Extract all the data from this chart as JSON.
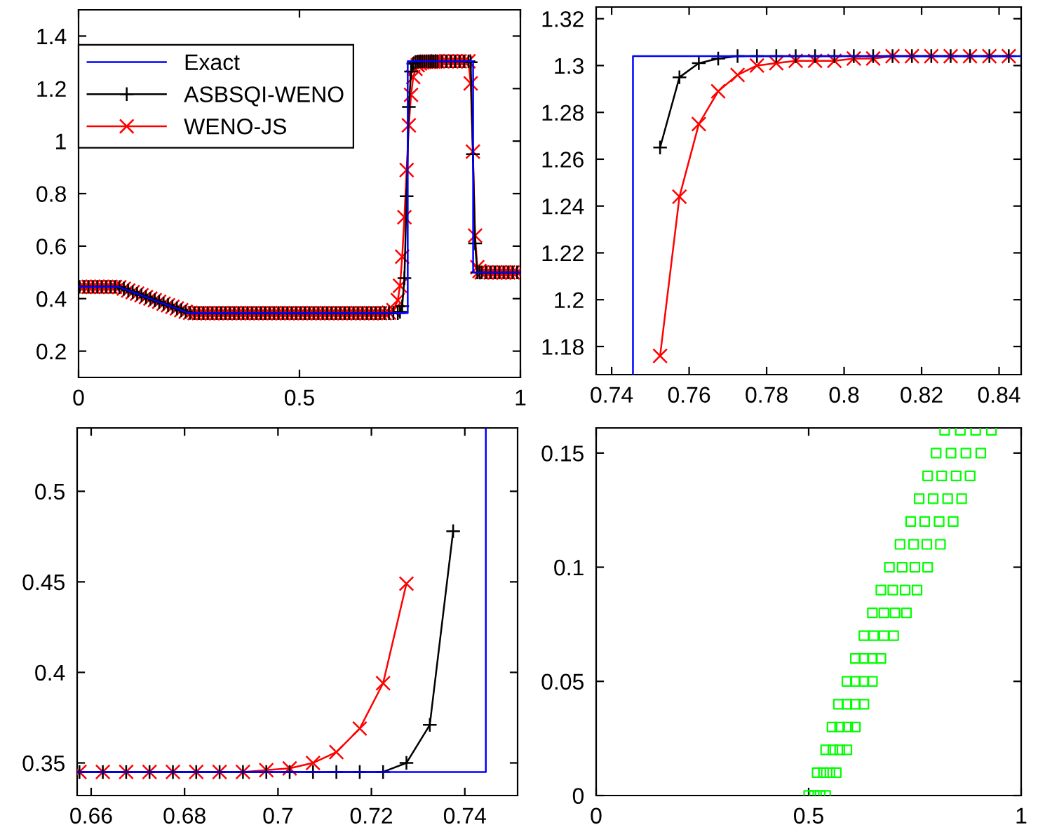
{
  "chart_data": [
    {
      "type": "line",
      "xlim": [
        0,
        1
      ],
      "ylim": [
        0.1,
        1.5
      ],
      "xticks": [
        0,
        0.5,
        1
      ],
      "yticks": [
        0.2,
        0.4,
        0.6,
        0.8,
        1,
        1.2,
        1.4
      ],
      "grid": false,
      "legend": "top left",
      "series": [
        {
          "name": "Exact",
          "color": "#0000ff",
          "marker": "none",
          "x": [
            0,
            0.09,
            0.25,
            0.745,
            0.745,
            0.893,
            0.893,
            1
          ],
          "values": [
            0.445,
            0.445,
            0.345,
            0.345,
            1.304,
            1.304,
            0.5,
            0.5
          ]
        },
        {
          "name": "ASBSQI-WENO",
          "color": "#000000",
          "marker": "plus",
          "x": [
            0.0025,
            0.0125,
            0.0225,
            0.0325,
            0.0425,
            0.0525,
            0.0625,
            0.0725,
            0.0825,
            0.0925,
            0.1025,
            0.1125,
            0.1225,
            0.1325,
            0.1425,
            0.1525,
            0.1625,
            0.1725,
            0.1825,
            0.1925,
            0.2025,
            0.2125,
            0.2225,
            0.2325,
            0.2425,
            0.2525,
            0.2625,
            0.2725,
            0.2825,
            0.2925,
            0.3025,
            0.3125,
            0.3225,
            0.3325,
            0.3425,
            0.3525,
            0.3625,
            0.3725,
            0.3825,
            0.3925,
            0.4025,
            0.4125,
            0.4225,
            0.4325,
            0.4425,
            0.4525,
            0.4625,
            0.4725,
            0.4825,
            0.4925,
            0.5025,
            0.5125,
            0.5225,
            0.5325,
            0.5425,
            0.5525,
            0.5625,
            0.5725,
            0.5825,
            0.5925,
            0.6025,
            0.6125,
            0.6225,
            0.6325,
            0.6425,
            0.6525,
            0.6625,
            0.6725,
            0.6825,
            0.6925,
            0.7025,
            0.7125,
            0.7225,
            0.7275,
            0.7325,
            0.7375,
            0.7425,
            0.7475,
            0.7525,
            0.7575,
            0.7625,
            0.7675,
            0.7725,
            0.7775,
            0.7825,
            0.7875,
            0.7925,
            0.7975,
            0.8025,
            0.8075,
            0.8125,
            0.8225,
            0.8325,
            0.8425,
            0.8525,
            0.8625,
            0.8725,
            0.8825,
            0.8875,
            0.8925,
            0.8975,
            0.9025,
            0.9075,
            0.9125,
            0.9225,
            0.9325,
            0.9425,
            0.9525,
            0.9625,
            0.9725,
            0.9825,
            0.9925
          ],
          "values": [
            0.445,
            0.445,
            0.445,
            0.445,
            0.445,
            0.445,
            0.445,
            0.445,
            0.445,
            0.444,
            0.438,
            0.431,
            0.425,
            0.419,
            0.413,
            0.406,
            0.4,
            0.394,
            0.388,
            0.381,
            0.375,
            0.369,
            0.363,
            0.356,
            0.35,
            0.346,
            0.345,
            0.345,
            0.345,
            0.345,
            0.345,
            0.345,
            0.345,
            0.345,
            0.345,
            0.345,
            0.345,
            0.345,
            0.345,
            0.345,
            0.345,
            0.345,
            0.345,
            0.345,
            0.345,
            0.345,
            0.345,
            0.345,
            0.345,
            0.345,
            0.345,
            0.345,
            0.345,
            0.345,
            0.345,
            0.345,
            0.345,
            0.345,
            0.345,
            0.345,
            0.345,
            0.345,
            0.345,
            0.345,
            0.345,
            0.345,
            0.345,
            0.345,
            0.345,
            0.345,
            0.345,
            0.345,
            0.345,
            0.35,
            0.371,
            0.478,
            0.79,
            1.13,
            1.265,
            1.295,
            1.301,
            1.303,
            1.304,
            1.304,
            1.304,
            1.304,
            1.304,
            1.304,
            1.304,
            1.304,
            1.304,
            1.304,
            1.304,
            1.304,
            1.304,
            1.304,
            1.304,
            1.304,
            1.3,
            0.95,
            0.61,
            0.5,
            0.5,
            0.5,
            0.5,
            0.5,
            0.5,
            0.5,
            0.5,
            0.5,
            0.5,
            0.5
          ]
        },
        {
          "name": "WENO-JS",
          "color": "#ff0000",
          "marker": "cross",
          "x": [
            0.0025,
            0.0125,
            0.0225,
            0.0325,
            0.0425,
            0.0525,
            0.0625,
            0.0725,
            0.0825,
            0.0925,
            0.1025,
            0.1125,
            0.1225,
            0.1325,
            0.1425,
            0.1525,
            0.1625,
            0.1725,
            0.1825,
            0.1925,
            0.2025,
            0.2125,
            0.2225,
            0.2325,
            0.2425,
            0.2525,
            0.2625,
            0.2725,
            0.2825,
            0.2925,
            0.3025,
            0.3125,
            0.3225,
            0.3325,
            0.3425,
            0.3525,
            0.3625,
            0.3725,
            0.3825,
            0.3925,
            0.4025,
            0.4125,
            0.4225,
            0.4325,
            0.4425,
            0.4525,
            0.4625,
            0.4725,
            0.4825,
            0.4925,
            0.5025,
            0.5125,
            0.5225,
            0.5325,
            0.5425,
            0.5525,
            0.5625,
            0.5725,
            0.5825,
            0.5925,
            0.6025,
            0.6125,
            0.6225,
            0.6325,
            0.6425,
            0.6525,
            0.6625,
            0.6725,
            0.6825,
            0.6925,
            0.7025,
            0.7125,
            0.7225,
            0.7275,
            0.7325,
            0.7375,
            0.7425,
            0.7475,
            0.7525,
            0.7575,
            0.7625,
            0.7675,
            0.7725,
            0.7775,
            0.7825,
            0.7875,
            0.7925,
            0.7975,
            0.8025,
            0.8075,
            0.8125,
            0.8225,
            0.8325,
            0.8425,
            0.8525,
            0.8625,
            0.8725,
            0.8825,
            0.8875,
            0.8925,
            0.8975,
            0.9025,
            0.9075,
            0.9125,
            0.9225,
            0.9325,
            0.9425,
            0.9525,
            0.9625,
            0.9725,
            0.9825,
            0.9925
          ],
          "values": [
            0.445,
            0.445,
            0.445,
            0.445,
            0.445,
            0.445,
            0.445,
            0.445,
            0.445,
            0.444,
            0.438,
            0.431,
            0.425,
            0.419,
            0.413,
            0.406,
            0.4,
            0.394,
            0.388,
            0.381,
            0.375,
            0.369,
            0.363,
            0.356,
            0.35,
            0.346,
            0.345,
            0.345,
            0.345,
            0.345,
            0.345,
            0.345,
            0.345,
            0.345,
            0.345,
            0.345,
            0.345,
            0.345,
            0.345,
            0.345,
            0.345,
            0.345,
            0.345,
            0.345,
            0.345,
            0.345,
            0.345,
            0.345,
            0.345,
            0.345,
            0.345,
            0.345,
            0.345,
            0.345,
            0.345,
            0.345,
            0.345,
            0.345,
            0.345,
            0.345,
            0.345,
            0.345,
            0.345,
            0.345,
            0.345,
            0.345,
            0.345,
            0.345,
            0.345,
            0.345,
            0.347,
            0.356,
            0.394,
            0.449,
            0.56,
            0.71,
            0.89,
            1.06,
            1.176,
            1.244,
            1.275,
            1.289,
            1.296,
            1.3,
            1.301,
            1.302,
            1.302,
            1.302,
            1.303,
            1.303,
            1.304,
            1.304,
            1.304,
            1.304,
            1.304,
            1.304,
            1.304,
            1.304,
            1.22,
            0.96,
            0.64,
            0.52,
            0.505,
            0.5,
            0.5,
            0.5,
            0.5,
            0.5,
            0.5,
            0.5,
            0.5,
            0.5
          ]
        }
      ]
    },
    {
      "type": "line",
      "xlim": [
        0.736,
        0.8457
      ],
      "ylim": [
        1.168,
        1.325
      ],
      "xticks": [
        0.74,
        0.76,
        0.78,
        0.8,
        0.82,
        0.84
      ],
      "yticks": [
        1.18,
        1.2,
        1.22,
        1.24,
        1.26,
        1.28,
        1.3,
        1.32
      ],
      "grid": false,
      "series": [
        {
          "color": "#0000ff",
          "marker": "none",
          "x": [
            0.7455,
            0.7455,
            0.8457
          ],
          "values": [
            1.168,
            1.304,
            1.304
          ]
        },
        {
          "color": "#000000",
          "marker": "plus",
          "x": [
            0.7525,
            0.7575,
            0.7625,
            0.7675,
            0.7725,
            0.7775,
            0.7825,
            0.7875,
            0.7925,
            0.7975,
            0.8025,
            0.8075,
            0.8125,
            0.8175,
            0.8225,
            0.8275,
            0.8325,
            0.8375,
            0.8425
          ],
          "values": [
            1.265,
            1.295,
            1.301,
            1.303,
            1.304,
            1.304,
            1.304,
            1.304,
            1.304,
            1.304,
            1.304,
            1.304,
            1.304,
            1.304,
            1.304,
            1.304,
            1.304,
            1.304,
            1.304
          ]
        },
        {
          "color": "#ff0000",
          "marker": "cross",
          "x": [
            0.7525,
            0.7575,
            0.7625,
            0.7675,
            0.7725,
            0.7775,
            0.7825,
            0.7875,
            0.7925,
            0.7975,
            0.8025,
            0.8075,
            0.8125,
            0.8175,
            0.8225,
            0.8275,
            0.8325,
            0.8375,
            0.8425
          ],
          "values": [
            1.176,
            1.244,
            1.275,
            1.289,
            1.296,
            1.3,
            1.301,
            1.302,
            1.302,
            1.302,
            1.303,
            1.303,
            1.304,
            1.304,
            1.304,
            1.304,
            1.304,
            1.304,
            1.304
          ]
        }
      ]
    },
    {
      "type": "line",
      "xlim": [
        0.657,
        0.7513
      ],
      "ylim": [
        0.332,
        0.535
      ],
      "xticks": [
        0.66,
        0.68,
        0.7,
        0.72,
        0.74
      ],
      "yticks": [
        0.35,
        0.4,
        0.45,
        0.5
      ],
      "grid": false,
      "series": [
        {
          "color": "#0000ff",
          "marker": "none",
          "x": [
            0.657,
            0.7445,
            0.7445
          ],
          "values": [
            0.345,
            0.345,
            0.535
          ]
        },
        {
          "color": "#000000",
          "marker": "plus",
          "x": [
            0.6575,
            0.6625,
            0.6675,
            0.6725,
            0.6775,
            0.6825,
            0.6875,
            0.6925,
            0.6975,
            0.7025,
            0.7075,
            0.7125,
            0.7175,
            0.7225,
            0.7275,
            0.7325,
            0.7375
          ],
          "values": [
            0.345,
            0.345,
            0.345,
            0.345,
            0.345,
            0.345,
            0.345,
            0.345,
            0.345,
            0.345,
            0.345,
            0.345,
            0.345,
            0.345,
            0.35,
            0.371,
            0.478
          ]
        },
        {
          "color": "#ff0000",
          "marker": "cross",
          "x": [
            0.6575,
            0.6625,
            0.6675,
            0.6725,
            0.6775,
            0.6825,
            0.6875,
            0.6925,
            0.6975,
            0.7025,
            0.7075,
            0.7125,
            0.7175,
            0.7225,
            0.7275
          ],
          "values": [
            0.345,
            0.345,
            0.345,
            0.345,
            0.345,
            0.345,
            0.345,
            0.345,
            0.346,
            0.347,
            0.35,
            0.356,
            0.369,
            0.394,
            0.449
          ]
        }
      ]
    },
    {
      "type": "scatter",
      "xlim": [
        0,
        1
      ],
      "ylim": [
        0,
        0.161
      ],
      "xticks": [
        0,
        0.5,
        1
      ],
      "yticks": [
        0,
        0.05,
        0.1,
        0.15
      ],
      "grid": false,
      "series": [
        {
          "color": "#00ff00",
          "marker": "square",
          "x": [
            0.5,
            0.513,
            0.527,
            0.54,
            0.52,
            0.535,
            0.55,
            0.565,
            0.54,
            0.557,
            0.573,
            0.59,
            0.555,
            0.573,
            0.592,
            0.61,
            0.57,
            0.59,
            0.61,
            0.63,
            0.59,
            0.61,
            0.63,
            0.65,
            0.61,
            0.63,
            0.65,
            0.67,
            0.63,
            0.653,
            0.677,
            0.7,
            0.65,
            0.677,
            0.703,
            0.73,
            0.67,
            0.698,
            0.727,
            0.755,
            0.69,
            0.72,
            0.75,
            0.78,
            0.715,
            0.747,
            0.778,
            0.81,
            0.74,
            0.773,
            0.807,
            0.84,
            0.76,
            0.793,
            0.827,
            0.86,
            0.78,
            0.813,
            0.847,
            0.88,
            0.8,
            0.835,
            0.87,
            0.905,
            0.82,
            0.857,
            0.893,
            0.93
          ],
          "values": [
            0,
            0,
            0,
            0,
            0.01,
            0.01,
            0.01,
            0.01,
            0.02,
            0.02,
            0.02,
            0.02,
            0.03,
            0.03,
            0.03,
            0.03,
            0.04,
            0.04,
            0.04,
            0.04,
            0.05,
            0.05,
            0.05,
            0.05,
            0.06,
            0.06,
            0.06,
            0.06,
            0.07,
            0.07,
            0.07,
            0.07,
            0.08,
            0.08,
            0.08,
            0.08,
            0.09,
            0.09,
            0.09,
            0.09,
            0.1,
            0.1,
            0.1,
            0.1,
            0.11,
            0.11,
            0.11,
            0.11,
            0.12,
            0.12,
            0.12,
            0.12,
            0.13,
            0.13,
            0.13,
            0.13,
            0.14,
            0.14,
            0.14,
            0.14,
            0.15,
            0.15,
            0.15,
            0.15,
            0.16,
            0.16,
            0.16,
            0.16
          ]
        }
      ]
    }
  ]
}
